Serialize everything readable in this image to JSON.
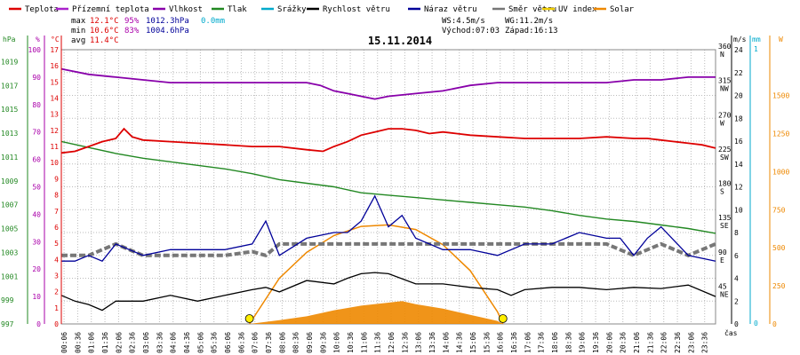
{
  "chart_data": {
    "type": "line",
    "title": "15.11.2014",
    "x_unit_label": "čas",
    "legend": [
      {
        "name": "Teplota",
        "color": "#dd0000"
      },
      {
        "name": "Přízemní teplota",
        "color": "#aa22cc"
      },
      {
        "name": "Vlhkost",
        "color": "#8800aa"
      },
      {
        "name": "Tlak",
        "color": "#228822"
      },
      {
        "name": "Srážky",
        "color": "#00aacc"
      },
      {
        "name": "Rychlost větru",
        "color": "#000000"
      },
      {
        "name": "Náraz větru",
        "color": "#000099"
      },
      {
        "name": "Směr větru",
        "color": "#777777"
      },
      {
        "name": "UV index",
        "color": "#eecc00"
      },
      {
        "name": "Solar",
        "color": "#ee8800"
      }
    ],
    "stats": {
      "max": {
        "label": "max",
        "temp": "12.1°C",
        "hum": "95%",
        "press": "1012.3hPa",
        "rain": "0.0mm"
      },
      "min": {
        "label": "min",
        "temp": "10.6°C",
        "hum": "83%",
        "press": "1004.6hPa"
      },
      "avg": {
        "label": "avg",
        "temp": "11.4°C"
      }
    },
    "info": {
      "ws": "WS:4.5m/s",
      "wg": "WG:11.2m/s",
      "sunrise": "Východ:07:03",
      "sunset": "Západ:16:13"
    },
    "x_ticks": [
      "00:06",
      "00:36",
      "01:06",
      "01:36",
      "02:06",
      "02:36",
      "03:06",
      "03:36",
      "04:06",
      "04:36",
      "05:06",
      "05:36",
      "06:06",
      "06:36",
      "07:06",
      "07:36",
      "08:06",
      "08:36",
      "09:06",
      "09:36",
      "10:06",
      "10:36",
      "11:06",
      "11:36",
      "12:06",
      "12:36",
      "13:06",
      "13:36",
      "14:06",
      "14:36",
      "15:06",
      "15:36",
      "16:06",
      "16:36",
      "17:06",
      "17:36",
      "18:06",
      "18:36",
      "19:06",
      "19:36",
      "20:06",
      "20:36",
      "21:06",
      "21:36",
      "22:06",
      "22:36",
      "23:06",
      "23:36"
    ],
    "axes": {
      "pressure": {
        "unit": "hPa",
        "ticks": [
          "1019",
          "1017",
          "1015",
          "1013",
          "1011",
          "1009",
          "1007",
          "1005",
          "1003",
          "1001",
          "999",
          "997"
        ],
        "range": [
          997,
          1020
        ]
      },
      "humidity": {
        "unit": "%",
        "ticks": [
          "100",
          "90",
          "80",
          "70",
          "60",
          "50",
          "40",
          "30",
          "20",
          "10",
          "0"
        ],
        "range": [
          0,
          100
        ]
      },
      "temperature": {
        "unit": "°C",
        "ticks": [
          "17",
          "16",
          "15",
          "14",
          "13",
          "12",
          "11",
          "10",
          "9",
          "8",
          "7",
          "6",
          "5",
          "4",
          "3",
          "2",
          "1",
          "0"
        ],
        "range": [
          0,
          17
        ]
      },
      "direction": {
        "ticks": [
          {
            "deg": "360",
            "dir": "N"
          },
          {
            "deg": "315",
            "dir": "NW"
          },
          {
            "deg": "270",
            "dir": "W"
          },
          {
            "deg": "225",
            "dir": "SW"
          },
          {
            "deg": "180",
            "dir": "S"
          },
          {
            "deg": "135",
            "dir": "SE"
          },
          {
            "deg": "90",
            "dir": "E"
          },
          {
            "deg": "45",
            "dir": "NE"
          }
        ],
        "range": [
          0,
          360
        ]
      },
      "wind": {
        "unit": "m/s",
        "ticks": [
          "24",
          "22",
          "20",
          "18",
          "16",
          "14",
          "12",
          "10",
          "8",
          "6",
          "4",
          "2",
          "0"
        ],
        "range": [
          0,
          24
        ]
      },
      "rain": {
        "unit": "mm",
        "ticks": [
          "1",
          "0"
        ],
        "range": [
          0,
          1
        ]
      },
      "solar": {
        "unit": "W",
        "ticks": [
          "1500",
          "1250",
          "1000",
          "750",
          "500",
          "250",
          "0"
        ],
        "range": [
          0,
          1800
        ]
      }
    },
    "series": {
      "temperature": {
        "x": [
          0,
          0.5,
          1,
          1.5,
          2,
          2.3,
          2.6,
          3,
          4,
          5,
          6,
          7,
          8,
          9,
          9.6,
          10,
          10.5,
          11,
          11.5,
          12,
          12.5,
          13,
          13.5,
          14,
          14.5,
          15,
          16,
          17,
          18,
          19,
          20,
          21,
          21.5,
          22,
          22.5,
          23,
          23.5,
          24
        ],
        "y": [
          10.6,
          10.7,
          11,
          11.3,
          11.5,
          12.1,
          11.6,
          11.4,
          11.3,
          11.2,
          11.1,
          11.0,
          11.0,
          10.8,
          10.7,
          11.0,
          11.3,
          11.7,
          11.9,
          12.1,
          12.1,
          12.0,
          11.8,
          11.9,
          11.8,
          11.7,
          11.6,
          11.5,
          11.5,
          11.5,
          11.6,
          11.5,
          11.5,
          11.4,
          11.3,
          11.2,
          11.1,
          10.9
        ]
      },
      "humidity": {
        "x": [
          0,
          1,
          2,
          3,
          4,
          5,
          6,
          7,
          8,
          9,
          9.5,
          10,
          10.5,
          11,
          11.5,
          12,
          13,
          14,
          15,
          16,
          17,
          18,
          19,
          20,
          21,
          22,
          23,
          24
        ],
        "y": [
          93,
          91,
          90,
          89,
          88,
          88,
          88,
          88,
          88,
          88,
          87,
          85,
          84,
          83,
          82,
          83,
          84,
          85,
          87,
          88,
          88,
          88,
          88,
          88,
          89,
          89,
          90,
          90
        ]
      },
      "pressure": {
        "x": [
          0,
          1,
          2,
          3,
          4,
          5,
          6,
          7,
          8,
          9,
          10,
          11,
          12,
          13,
          14,
          15,
          16,
          17,
          18,
          19,
          20,
          21,
          22,
          23,
          24
        ],
        "y": [
          1012.3,
          1011.8,
          1011.3,
          1010.9,
          1010.6,
          1010.3,
          1010.0,
          1009.6,
          1009.1,
          1008.8,
          1008.5,
          1008.0,
          1007.8,
          1007.6,
          1007.4,
          1007.2,
          1007.0,
          1006.8,
          1006.5,
          1006.1,
          1005.8,
          1005.6,
          1005.3,
          1005.0,
          1004.6
        ]
      },
      "wind_speed": {
        "x": [
          0,
          0.5,
          1,
          1.5,
          2,
          3,
          4,
          5,
          6,
          7,
          7.5,
          8,
          9,
          10,
          10.5,
          11,
          11.5,
          12,
          13,
          14,
          15,
          16,
          16.5,
          17,
          18,
          19,
          20,
          21,
          22,
          23,
          24
        ],
        "y": [
          2.5,
          2.0,
          1.7,
          1.2,
          2.0,
          2.0,
          2.5,
          2.0,
          2.5,
          3.0,
          3.2,
          2.8,
          3.8,
          3.5,
          4.0,
          4.4,
          4.5,
          4.4,
          3.5,
          3.5,
          3.2,
          3.0,
          2.5,
          3.0,
          3.2,
          3.2,
          3.0,
          3.2,
          3.1,
          3.4,
          2.4
        ]
      },
      "wind_gust": {
        "x": [
          0,
          0.5,
          1,
          1.5,
          2,
          3,
          4,
          5,
          6,
          7,
          7.5,
          8,
          9,
          10,
          10.5,
          11,
          11.5,
          12,
          12.5,
          13,
          14,
          15,
          16,
          17,
          18,
          19,
          20,
          20.5,
          21,
          21.5,
          22,
          23,
          24
        ],
        "y": [
          5.5,
          5.5,
          6.0,
          5.5,
          7.0,
          6.0,
          6.5,
          6.5,
          6.5,
          7.0,
          9.0,
          6.0,
          7.5,
          8.0,
          8.0,
          9.0,
          11.2,
          8.5,
          9.5,
          7.5,
          6.5,
          6.5,
          6.0,
          7.0,
          7.0,
          8.0,
          7.5,
          7.5,
          6.0,
          7.5,
          8.5,
          6.0,
          5.5
        ]
      },
      "wind_direction": {
        "x": [
          0,
          1,
          2,
          3,
          4,
          5,
          6,
          7,
          7.5,
          8,
          9,
          10,
          11,
          12,
          13,
          14,
          15,
          16,
          17,
          18,
          19,
          20,
          21,
          22,
          23,
          24
        ],
        "y": [
          90,
          90,
          105,
          90,
          90,
          90,
          90,
          95,
          90,
          105,
          105,
          105,
          105,
          105,
          105,
          105,
          105,
          105,
          105,
          105,
          105,
          105,
          90,
          105,
          90,
          105
        ]
      },
      "solar": {
        "x": [
          6.9,
          8,
          9,
          10,
          11,
          12,
          12.5,
          13,
          14,
          15,
          16,
          16.2
        ],
        "y": [
          0,
          25,
          50,
          90,
          120,
          140,
          150,
          130,
          100,
          60,
          20,
          0
        ]
      },
      "solar_max": {
        "x": [
          6.9,
          8,
          9,
          10,
          11,
          12,
          13,
          14,
          15,
          16,
          16.2
        ],
        "y": [
          0,
          300,
          470,
          580,
          640,
          650,
          620,
          520,
          350,
          80,
          0
        ]
      },
      "uv_markers": {
        "x": [
          6.9,
          16.2
        ],
        "y": [
          0,
          0
        ]
      }
    }
  }
}
